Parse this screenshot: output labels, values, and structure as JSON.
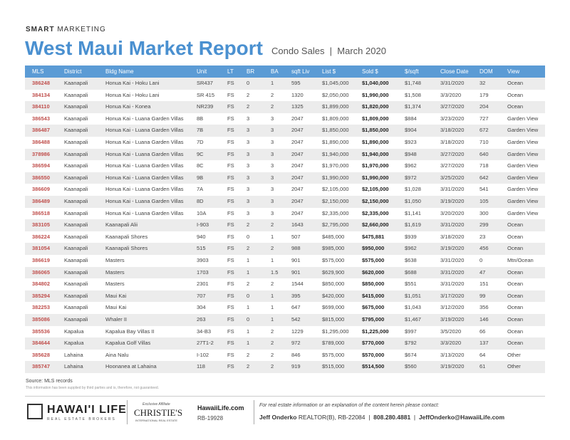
{
  "header": {
    "brand_bold": "SMART",
    "brand_rest": "MARKETING",
    "title": "West Maui Market Report",
    "subtitle_a": "Condo Sales",
    "subtitle_b": "March 2020"
  },
  "table": {
    "columns": [
      "MLS",
      "District",
      "Bldg Name",
      "Unit",
      "LT",
      "BR",
      "BA",
      "sqft Liv",
      "List $",
      "Sold $",
      "$/sqft",
      "Close Date",
      "DOM",
      "View"
    ],
    "rows": [
      [
        "386248",
        "Kaanapali",
        "Honua Kai - Hoku Lani",
        "SR437",
        "FS",
        "0",
        "1",
        "595",
        "$1,045,000",
        "$1,040,000",
        "$1,748",
        "3/31/2020",
        "32",
        "Ocean"
      ],
      [
        "384134",
        "Kaanapali",
        "Honua Kai - Hoku Lani",
        "SR 415",
        "FS",
        "2",
        "2",
        "1320",
        "$2,050,000",
        "$1,990,000",
        "$1,508",
        "3/3/2020",
        "179",
        "Ocean"
      ],
      [
        "384110",
        "Kaanapali",
        "Honua Kai - Konea",
        "NR239",
        "FS",
        "2",
        "2",
        "1325",
        "$1,899,000",
        "$1,820,000",
        "$1,374",
        "3/27/2020",
        "204",
        "Ocean"
      ],
      [
        "386543",
        "Kaanapali",
        "Honua Kai - Luana Garden Villas",
        "8B",
        "FS",
        "3",
        "3",
        "2047",
        "$1,809,000",
        "$1,809,000",
        "$884",
        "3/23/2020",
        "727",
        "Garden View"
      ],
      [
        "386487",
        "Kaanapali",
        "Honua Kai - Luana Garden Villas",
        "7B",
        "FS",
        "3",
        "3",
        "2047",
        "$1,850,000",
        "$1,850,000",
        "$904",
        "3/18/2020",
        "672",
        "Garden View"
      ],
      [
        "386488",
        "Kaanapali",
        "Honua Kai - Luana Garden Villas",
        "7D",
        "FS",
        "3",
        "3",
        "2047",
        "$1,890,000",
        "$1,890,000",
        "$923",
        "3/18/2020",
        "710",
        "Garden View"
      ],
      [
        "378986",
        "Kaanapali",
        "Honua Kai - Luana Garden Villas",
        "9C",
        "FS",
        "3",
        "3",
        "2047",
        "$1,940,000",
        "$1,940,000",
        "$948",
        "3/27/2020",
        "640",
        "Garden View"
      ],
      [
        "386594",
        "Kaanapali",
        "Honua Kai - Luana Garden Villas",
        "8C",
        "FS",
        "3",
        "3",
        "2047",
        "$1,970,000",
        "$1,970,000",
        "$962",
        "3/27/2020",
        "718",
        "Garden View"
      ],
      [
        "386550",
        "Kaanapali",
        "Honua Kai - Luana Garden Villas",
        "9B",
        "FS",
        "3",
        "3",
        "2047",
        "$1,990,000",
        "$1,990,000",
        "$972",
        "3/25/2020",
        "642",
        "Garden View"
      ],
      [
        "386609",
        "Kaanapali",
        "Honua Kai - Luana Garden Villas",
        "7A",
        "FS",
        "3",
        "3",
        "2047",
        "$2,105,000",
        "$2,105,000",
        "$1,028",
        "3/31/2020",
        "541",
        "Garden View"
      ],
      [
        "386489",
        "Kaanapali",
        "Honua Kai - Luana Garden Villas",
        "8D",
        "FS",
        "3",
        "3",
        "2047",
        "$2,150,000",
        "$2,150,000",
        "$1,050",
        "3/19/2020",
        "105",
        "Garden View"
      ],
      [
        "386518",
        "Kaanapali",
        "Honua Kai - Luana Garden Villas",
        "10A",
        "FS",
        "3",
        "3",
        "2047",
        "$2,335,000",
        "$2,335,000",
        "$1,141",
        "3/20/2020",
        "300",
        "Garden View"
      ],
      [
        "383105",
        "Kaanapali",
        "Kaanapali Alii",
        "I-903",
        "FS",
        "2",
        "2",
        "1643",
        "$2,795,000",
        "$2,660,000",
        "$1,619",
        "3/31/2020",
        "299",
        "Ocean"
      ],
      [
        "386224",
        "Kaanapali",
        "Kaanapali Shores",
        "940",
        "FS",
        "0",
        "1",
        "507",
        "$485,000",
        "$475,881",
        "$939",
        "3/18/2020",
        "23",
        "Ocean"
      ],
      [
        "381054",
        "Kaanapali",
        "Kaanapali Shores",
        "515",
        "FS",
        "2",
        "2",
        "988",
        "$985,000",
        "$950,000",
        "$962",
        "3/19/2020",
        "456",
        "Ocean"
      ],
      [
        "386619",
        "Kaanapali",
        "Masters",
        "3903",
        "FS",
        "1",
        "1",
        "901",
        "$575,000",
        "$575,000",
        "$638",
        "3/31/2020",
        "0",
        "Mtn/Ocean"
      ],
      [
        "386065",
        "Kaanapali",
        "Masters",
        "1703",
        "FS",
        "1",
        "1.5",
        "901",
        "$629,900",
        "$620,000",
        "$688",
        "3/31/2020",
        "47",
        "Ocean"
      ],
      [
        "384802",
        "Kaanapali",
        "Masters",
        "2301",
        "FS",
        "2",
        "2",
        "1544",
        "$850,000",
        "$850,000",
        "$551",
        "3/31/2020",
        "151",
        "Ocean"
      ],
      [
        "385294",
        "Kaanapali",
        "Maui Kai",
        "707",
        "FS",
        "0",
        "1",
        "395",
        "$420,000",
        "$415,000",
        "$1,051",
        "3/17/2020",
        "99",
        "Ocean"
      ],
      [
        "382253",
        "Kaanapali",
        "Maui Kai",
        "304",
        "FS",
        "1",
        "1",
        "647",
        "$699,000",
        "$675,000",
        "$1,043",
        "3/12/2020",
        "356",
        "Ocean"
      ],
      [
        "385086",
        "Kaanapali",
        "Whaler II",
        "263",
        "FS",
        "0",
        "1",
        "542",
        "$815,000",
        "$795,000",
        "$1,467",
        "3/19/2020",
        "146",
        "Ocean"
      ],
      [
        "385536",
        "Kapalua",
        "Kapalua Bay Villas II",
        "34-B3",
        "FS",
        "1",
        "2",
        "1229",
        "$1,295,000",
        "$1,225,000",
        "$997",
        "3/5/2020",
        "66",
        "Ocean"
      ],
      [
        "384644",
        "Kapalua",
        "Kapalua Golf Villas",
        "27T1-2",
        "FS",
        "1",
        "2",
        "972",
        "$789,000",
        "$770,000",
        "$792",
        "3/3/2020",
        "137",
        "Ocean"
      ],
      [
        "385628",
        "Lahaina",
        "Aina Nalu",
        "I-102",
        "FS",
        "2",
        "2",
        "846",
        "$575,000",
        "$570,000",
        "$674",
        "3/13/2020",
        "64",
        "Other"
      ],
      [
        "385747",
        "Lahaina",
        "Hoonanea at Lahaina",
        "118",
        "FS",
        "2",
        "2",
        "919",
        "$515,000",
        "$514,500",
        "$560",
        "3/19/2020",
        "61",
        "Other"
      ]
    ]
  },
  "notes": {
    "source": "Source: MLS records",
    "disclaimer": "This information has been supplied by third parties and is, therefore, not guaranteed."
  },
  "footer": {
    "logo": "HAWAI'I LIFE",
    "logo_sub": "REAL ESTATE BROKERS",
    "affiliate": "Exclusive Affiliate",
    "christies": "CHRISTIE'S",
    "christies_sub": "INTERNATIONAL REAL ESTATE",
    "site": "HawaiiLife.com",
    "license": "RB-19928",
    "contact_intro": "For real estate information or an explanation of the content herein please contact:",
    "agent": "Jeff Onderko",
    "agent_license": "REALTOR(B), RB-22084",
    "phone": "808.280.4881",
    "email": "JeffOnderko@HawaiiLife.com"
  }
}
